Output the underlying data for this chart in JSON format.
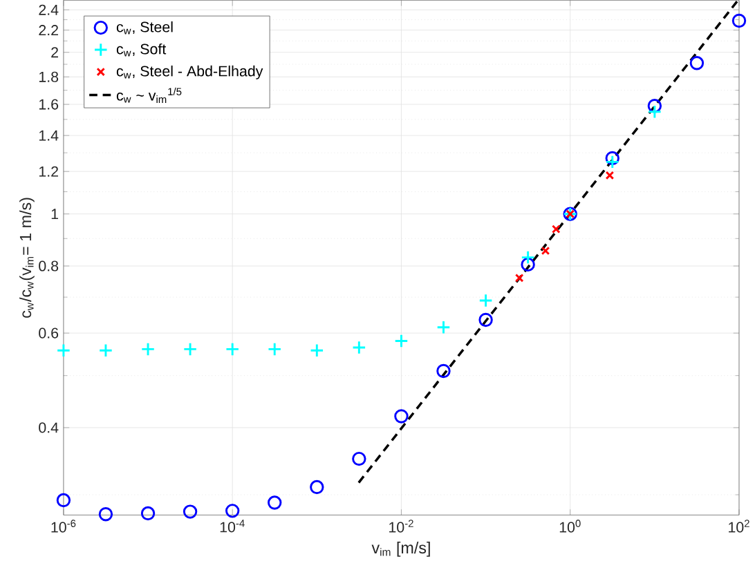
{
  "chart_data": {
    "type": "scatter",
    "xlabel": "v$_{im}$ [m/s]",
    "ylabel": "c$_{w}$/c$_{w}$(v$_{im}$= 1 m/s)",
    "log": "xy",
    "grid": true,
    "legend": "top left",
    "xlim": [
      1e-06,
      100
    ],
    "ylim": [
      0.275,
      2.5
    ],
    "xticks": [
      {
        "value": 1e-06,
        "label": "10$^{-6}$"
      },
      {
        "value": 0.0001,
        "label": "10$^{-4}$"
      },
      {
        "value": 0.01,
        "label": "10$^{-2}$"
      },
      {
        "value": 1,
        "label": "10$^{0}$"
      },
      {
        "value": 100,
        "label": "10$^{2}$"
      }
    ],
    "yticks": [
      0.4,
      0.6,
      0.8,
      1,
      1.2,
      1.4,
      1.6,
      1.8,
      2,
      2.2,
      2.4
    ],
    "series": [
      {
        "name": "c$_{w}$, Steel",
        "color": "#0000ff",
        "marker": "circle",
        "x": [
          1e-06,
          3.16e-06,
          1e-05,
          3.16e-05,
          0.0001,
          0.000316,
          0.001,
          0.00316,
          0.01,
          0.0316,
          0.1,
          0.316,
          1,
          3.16,
          10,
          31.6,
          100
        ],
        "values": [
          0.293,
          0.276,
          0.277,
          0.279,
          0.28,
          0.29,
          0.31,
          0.35,
          0.42,
          0.51,
          0.635,
          0.805,
          1.0,
          1.27,
          1.59,
          1.91,
          2.29
        ]
      },
      {
        "name": "c$_{w}$, Soft",
        "color": "#00ffff",
        "marker": "cross",
        "x": [
          1e-06,
          3.16e-06,
          1e-05,
          3.16e-05,
          0.0001,
          0.000316,
          0.001,
          0.00316,
          0.01,
          0.0316,
          0.1,
          0.316,
          1,
          3.16,
          10
        ],
        "values": [
          0.557,
          0.557,
          0.56,
          0.56,
          0.56,
          0.56,
          0.557,
          0.564,
          0.58,
          0.615,
          0.69,
          0.83,
          1.0,
          1.25,
          1.55
        ]
      },
      {
        "name": "c$_{w}$, Steel - Abd-Elhady",
        "color": "#ff0000",
        "marker": "x",
        "x": [
          0.25,
          0.51,
          0.68,
          1.0,
          2.94
        ],
        "values": [
          0.76,
          0.854,
          0.937,
          1.0,
          1.18
        ]
      },
      {
        "name": "c$_{w}$ ~ v$_{im}$$^{1/5}$",
        "type": "line",
        "color": "#000000",
        "marker": "none",
        "line_style": "dashed",
        "x": [
          0.00313,
          97
        ],
        "values": [
          0.316,
          2.5
        ]
      }
    ]
  }
}
